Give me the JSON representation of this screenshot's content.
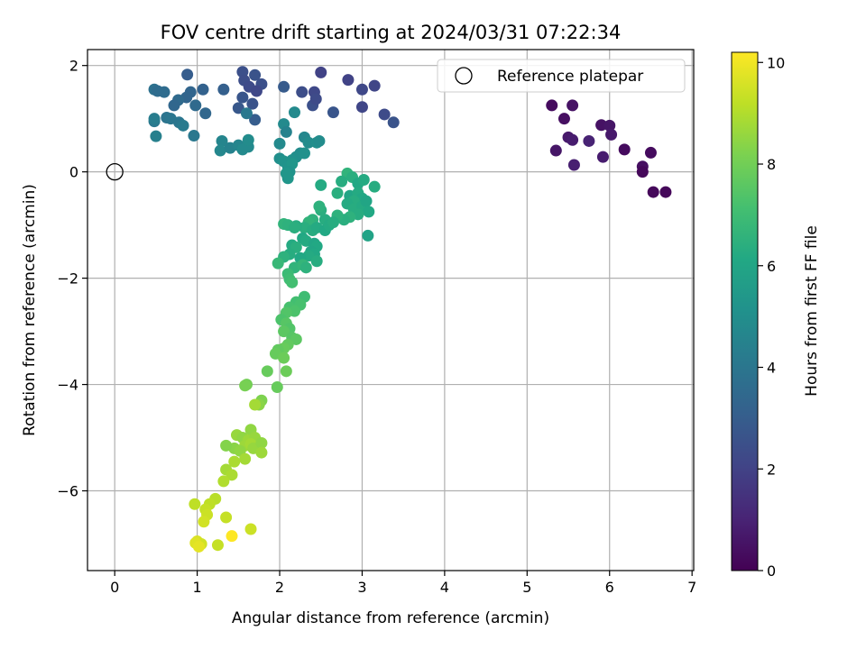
{
  "chart_data": {
    "type": "scatter",
    "title": "FOV centre drift starting at 2024/03/31 07:22:34",
    "xlabel": "Angular distance from reference (arcmin)",
    "ylabel": "Rotation from reference (arcmin)",
    "xlim": [
      -0.33,
      7.02
    ],
    "ylim": [
      -7.5,
      2.3
    ],
    "xticks": [
      0,
      1,
      2,
      3,
      4,
      5,
      6,
      7
    ],
    "yticks": [
      -6,
      -4,
      -2,
      0,
      2
    ],
    "grid": true,
    "colormap": "viridis",
    "colorbar": {
      "label": "Hours from first FF file",
      "range": [
        0,
        10.2
      ],
      "ticks": [
        0,
        2,
        4,
        6,
        8,
        10
      ]
    },
    "legend": {
      "position": "top-right",
      "entries": [
        "Reference platepar"
      ]
    },
    "reference": {
      "name": "Reference platepar",
      "x": 0,
      "y": 0
    },
    "points": [
      {
        "x": 5.3,
        "y": 1.25,
        "c": 0.3
      },
      {
        "x": 5.45,
        "y": 1.0,
        "c": 0.4
      },
      {
        "x": 5.55,
        "y": 1.25,
        "c": 0.5
      },
      {
        "x": 5.35,
        "y": 0.4,
        "c": 0.6
      },
      {
        "x": 5.5,
        "y": 0.65,
        "c": 0.7
      },
      {
        "x": 5.55,
        "y": 0.6,
        "c": 0.8
      },
      {
        "x": 5.57,
        "y": 0.13,
        "c": 0.9
      },
      {
        "x": 5.75,
        "y": 0.58,
        "c": 1.0
      },
      {
        "x": 5.9,
        "y": 0.88,
        "c": 0.5
      },
      {
        "x": 6.0,
        "y": 0.87,
        "c": 0.6
      },
      {
        "x": 6.02,
        "y": 0.7,
        "c": 0.7
      },
      {
        "x": 5.92,
        "y": 0.28,
        "c": 0.8
      },
      {
        "x": 6.18,
        "y": 0.42,
        "c": 0.3
      },
      {
        "x": 6.4,
        "y": 0.1,
        "c": 0.4
      },
      {
        "x": 6.4,
        "y": 0.0,
        "c": 0.2
      },
      {
        "x": 6.5,
        "y": 0.36,
        "c": 0.3
      },
      {
        "x": 6.53,
        "y": -0.38,
        "c": 0.2
      },
      {
        "x": 6.68,
        "y": -0.38,
        "c": 0.2
      },
      {
        "x": 1.55,
        "y": 1.88,
        "c": 2.5
      },
      {
        "x": 1.7,
        "y": 1.82,
        "c": 2.6
      },
      {
        "x": 1.57,
        "y": 1.72,
        "c": 2.4
      },
      {
        "x": 1.63,
        "y": 1.6,
        "c": 2.3
      },
      {
        "x": 1.78,
        "y": 1.65,
        "c": 2.5
      },
      {
        "x": 1.72,
        "y": 1.52,
        "c": 2.2
      },
      {
        "x": 1.55,
        "y": 1.4,
        "c": 2.7
      },
      {
        "x": 1.5,
        "y": 1.2,
        "c": 2.8
      },
      {
        "x": 1.67,
        "y": 1.28,
        "c": 2.6
      },
      {
        "x": 1.7,
        "y": 0.98,
        "c": 3.0
      },
      {
        "x": 1.6,
        "y": 1.1,
        "c": 4.1
      },
      {
        "x": 2.05,
        "y": 1.6,
        "c": 2.9
      },
      {
        "x": 2.5,
        "y": 1.87,
        "c": 2.0
      },
      {
        "x": 2.42,
        "y": 1.5,
        "c": 2.2
      },
      {
        "x": 2.27,
        "y": 1.5,
        "c": 2.4
      },
      {
        "x": 2.4,
        "y": 1.25,
        "c": 2.5
      },
      {
        "x": 2.44,
        "y": 1.37,
        "c": 2.3
      },
      {
        "x": 2.65,
        "y": 1.12,
        "c": 2.7
      },
      {
        "x": 2.83,
        "y": 1.73,
        "c": 2.0
      },
      {
        "x": 3.0,
        "y": 1.55,
        "c": 2.2
      },
      {
        "x": 3.15,
        "y": 1.62,
        "c": 2.1
      },
      {
        "x": 3.0,
        "y": 1.22,
        "c": 2.1
      },
      {
        "x": 3.27,
        "y": 1.08,
        "c": 2.3
      },
      {
        "x": 3.38,
        "y": 0.93,
        "c": 2.6
      },
      {
        "x": 0.88,
        "y": 1.83,
        "c": 3.0
      },
      {
        "x": 1.32,
        "y": 1.55,
        "c": 3.1
      },
      {
        "x": 1.07,
        "y": 1.55,
        "c": 3.2
      },
      {
        "x": 0.92,
        "y": 1.5,
        "c": 3.3
      },
      {
        "x": 0.87,
        "y": 1.4,
        "c": 3.3
      },
      {
        "x": 0.77,
        "y": 1.35,
        "c": 3.5
      },
      {
        "x": 0.72,
        "y": 1.25,
        "c": 3.4
      },
      {
        "x": 0.6,
        "y": 1.5,
        "c": 3.6
      },
      {
        "x": 0.48,
        "y": 1.55,
        "c": 3.8
      },
      {
        "x": 0.52,
        "y": 1.52,
        "c": 3.6
      },
      {
        "x": 0.98,
        "y": 1.25,
        "c": 3.5
      },
      {
        "x": 1.1,
        "y": 1.1,
        "c": 3.4
      },
      {
        "x": 0.63,
        "y": 1.02,
        "c": 3.9
      },
      {
        "x": 0.68,
        "y": 1.0,
        "c": 4.0
      },
      {
        "x": 0.78,
        "y": 0.93,
        "c": 4.0
      },
      {
        "x": 0.83,
        "y": 0.87,
        "c": 4.2
      },
      {
        "x": 0.48,
        "y": 0.95,
        "c": 4.1
      },
      {
        "x": 0.48,
        "y": 1.0,
        "c": 4.3
      },
      {
        "x": 0.5,
        "y": 0.67,
        "c": 4.4
      },
      {
        "x": 0.96,
        "y": 0.68,
        "c": 4.1
      },
      {
        "x": 1.3,
        "y": 0.58,
        "c": 4.6
      },
      {
        "x": 1.28,
        "y": 0.4,
        "c": 4.7
      },
      {
        "x": 1.4,
        "y": 0.45,
        "c": 4.5
      },
      {
        "x": 1.5,
        "y": 0.5,
        "c": 4.6
      },
      {
        "x": 1.55,
        "y": 0.42,
        "c": 4.8
      },
      {
        "x": 1.62,
        "y": 0.47,
        "c": 4.8
      },
      {
        "x": 1.62,
        "y": 0.6,
        "c": 4.9
      },
      {
        "x": 2.05,
        "y": 0.9,
        "c": 4.8
      },
      {
        "x": 2.08,
        "y": 0.75,
        "c": 4.5
      },
      {
        "x": 2.18,
        "y": 1.12,
        "c": 4.8
      },
      {
        "x": 2.3,
        "y": 0.65,
        "c": 4.7
      },
      {
        "x": 2.35,
        "y": 0.55,
        "c": 4.9
      },
      {
        "x": 2.45,
        "y": 0.55,
        "c": 5.0
      },
      {
        "x": 2.48,
        "y": 0.58,
        "c": 4.9
      },
      {
        "x": 2.0,
        "y": 0.53,
        "c": 4.8
      },
      {
        "x": 2.25,
        "y": 0.35,
        "c": 4.9
      },
      {
        "x": 2.2,
        "y": 0.28,
        "c": 5.0
      },
      {
        "x": 2.15,
        "y": 0.22,
        "c": 5.1
      },
      {
        "x": 2.0,
        "y": 0.25,
        "c": 5.0
      },
      {
        "x": 2.05,
        "y": 0.2,
        "c": 5.2
      },
      {
        "x": 2.1,
        "y": 0.1,
        "c": 5.2
      },
      {
        "x": 2.15,
        "y": 0.15,
        "c": 5.3
      },
      {
        "x": 2.12,
        "y": 0.0,
        "c": 5.2
      },
      {
        "x": 2.1,
        "y": -0.12,
        "c": 5.3
      },
      {
        "x": 2.08,
        "y": -0.03,
        "c": 5.3
      },
      {
        "x": 2.3,
        "y": 0.35,
        "c": 5.1
      },
      {
        "x": 2.5,
        "y": -0.25,
        "c": 6.2
      },
      {
        "x": 2.82,
        "y": -0.03,
        "c": 6.6
      },
      {
        "x": 2.88,
        "y": -0.1,
        "c": 6.4
      },
      {
        "x": 2.75,
        "y": -0.18,
        "c": 6.3
      },
      {
        "x": 2.95,
        "y": -0.22,
        "c": 6.1
      },
      {
        "x": 3.02,
        "y": -0.15,
        "c": 6.2
      },
      {
        "x": 3.15,
        "y": -0.28,
        "c": 6.3
      },
      {
        "x": 2.85,
        "y": -0.45,
        "c": 6.0
      },
      {
        "x": 2.95,
        "y": -0.4,
        "c": 6.2
      },
      {
        "x": 3.0,
        "y": -0.5,
        "c": 6.1
      },
      {
        "x": 2.9,
        "y": -0.55,
        "c": 6.3
      },
      {
        "x": 2.7,
        "y": -0.4,
        "c": 6.4
      },
      {
        "x": 2.82,
        "y": -0.6,
        "c": 6.2
      },
      {
        "x": 2.9,
        "y": -0.7,
        "c": 6.3
      },
      {
        "x": 3.0,
        "y": -0.65,
        "c": 6.2
      },
      {
        "x": 3.05,
        "y": -0.55,
        "c": 6.0
      },
      {
        "x": 3.08,
        "y": -0.75,
        "c": 6.1
      },
      {
        "x": 2.95,
        "y": -0.8,
        "c": 6.3
      },
      {
        "x": 2.85,
        "y": -0.85,
        "c": 6.5
      },
      {
        "x": 2.78,
        "y": -0.9,
        "c": 6.4
      },
      {
        "x": 2.7,
        "y": -0.82,
        "c": 6.5
      },
      {
        "x": 2.55,
        "y": -0.9,
        "c": 6.3
      },
      {
        "x": 2.5,
        "y": -0.72,
        "c": 6.4
      },
      {
        "x": 2.48,
        "y": -0.65,
        "c": 6.5
      },
      {
        "x": 2.4,
        "y": -0.9,
        "c": 6.5
      },
      {
        "x": 2.35,
        "y": -0.95,
        "c": 6.6
      },
      {
        "x": 2.3,
        "y": -1.05,
        "c": 6.4
      },
      {
        "x": 2.2,
        "y": -1.02,
        "c": 6.3
      },
      {
        "x": 2.05,
        "y": -0.98,
        "c": 6.6
      },
      {
        "x": 2.1,
        "y": -1.0,
        "c": 6.5
      },
      {
        "x": 2.18,
        "y": -1.05,
        "c": 6.4
      },
      {
        "x": 2.4,
        "y": -1.1,
        "c": 6.3
      },
      {
        "x": 2.45,
        "y": -1.05,
        "c": 6.2
      },
      {
        "x": 2.55,
        "y": -1.1,
        "c": 6.1
      },
      {
        "x": 2.6,
        "y": -1.0,
        "c": 6.2
      },
      {
        "x": 2.65,
        "y": -0.95,
        "c": 6.3
      },
      {
        "x": 3.07,
        "y": -1.2,
        "c": 5.9
      },
      {
        "x": 2.28,
        "y": -1.25,
        "c": 6.1
      },
      {
        "x": 2.32,
        "y": -1.3,
        "c": 6.2
      },
      {
        "x": 2.42,
        "y": -1.35,
        "c": 6.0
      },
      {
        "x": 2.45,
        "y": -1.4,
        "c": 6.1
      },
      {
        "x": 2.38,
        "y": -1.5,
        "c": 6.0
      },
      {
        "x": 2.42,
        "y": -1.55,
        "c": 6.1
      },
      {
        "x": 2.35,
        "y": -1.58,
        "c": 6.2
      },
      {
        "x": 2.25,
        "y": -1.62,
        "c": 6.1
      },
      {
        "x": 2.45,
        "y": -1.68,
        "c": 6.3
      },
      {
        "x": 2.15,
        "y": -1.38,
        "c": 6.2
      },
      {
        "x": 2.2,
        "y": -1.42,
        "c": 6.4
      },
      {
        "x": 2.12,
        "y": -1.55,
        "c": 6.3
      },
      {
        "x": 2.05,
        "y": -1.6,
        "c": 6.5
      },
      {
        "x": 2.18,
        "y": -1.8,
        "c": 6.6
      },
      {
        "x": 2.28,
        "y": -1.75,
        "c": 6.7
      },
      {
        "x": 2.32,
        "y": -1.8,
        "c": 6.5
      },
      {
        "x": 1.98,
        "y": -1.72,
        "c": 6.8
      },
      {
        "x": 2.1,
        "y": -1.92,
        "c": 6.9
      },
      {
        "x": 2.12,
        "y": -2.02,
        "c": 7.0
      },
      {
        "x": 2.15,
        "y": -2.08,
        "c": 7.1
      },
      {
        "x": 2.3,
        "y": -2.35,
        "c": 7.0
      },
      {
        "x": 2.2,
        "y": -2.45,
        "c": 7.1
      },
      {
        "x": 2.25,
        "y": -2.5,
        "c": 7.2
      },
      {
        "x": 2.12,
        "y": -2.55,
        "c": 7.2
      },
      {
        "x": 2.18,
        "y": -2.62,
        "c": 7.3
      },
      {
        "x": 2.08,
        "y": -2.65,
        "c": 7.4
      },
      {
        "x": 2.02,
        "y": -2.78,
        "c": 7.3
      },
      {
        "x": 2.08,
        "y": -2.85,
        "c": 7.5
      },
      {
        "x": 2.12,
        "y": -2.95,
        "c": 7.4
      },
      {
        "x": 2.05,
        "y": -3.0,
        "c": 7.6
      },
      {
        "x": 2.15,
        "y": -3.12,
        "c": 7.5
      },
      {
        "x": 2.2,
        "y": -3.15,
        "c": 7.6
      },
      {
        "x": 2.1,
        "y": -3.25,
        "c": 7.7
      },
      {
        "x": 2.05,
        "y": -3.32,
        "c": 7.8
      },
      {
        "x": 1.98,
        "y": -3.35,
        "c": 7.7
      },
      {
        "x": 1.95,
        "y": -3.42,
        "c": 7.8
      },
      {
        "x": 2.05,
        "y": -3.5,
        "c": 7.9
      },
      {
        "x": 2.08,
        "y": -3.75,
        "c": 7.9
      },
      {
        "x": 1.85,
        "y": -3.75,
        "c": 7.8
      },
      {
        "x": 1.97,
        "y": -4.05,
        "c": 7.8
      },
      {
        "x": 1.6,
        "y": -4.0,
        "c": 8.0
      },
      {
        "x": 1.58,
        "y": -4.02,
        "c": 8.1
      },
      {
        "x": 1.78,
        "y": -4.3,
        "c": 8.2
      },
      {
        "x": 1.75,
        "y": -4.38,
        "c": 8.4
      },
      {
        "x": 1.7,
        "y": -4.38,
        "c": 8.8
      },
      {
        "x": 1.65,
        "y": -4.85,
        "c": 8.5
      },
      {
        "x": 1.48,
        "y": -4.95,
        "c": 8.6
      },
      {
        "x": 1.55,
        "y": -5.0,
        "c": 8.5
      },
      {
        "x": 1.62,
        "y": -5.05,
        "c": 8.7
      },
      {
        "x": 1.7,
        "y": -5.0,
        "c": 8.6
      },
      {
        "x": 1.58,
        "y": -5.15,
        "c": 8.7
      },
      {
        "x": 1.65,
        "y": -5.12,
        "c": 8.8
      },
      {
        "x": 1.68,
        "y": -5.2,
        "c": 8.6
      },
      {
        "x": 1.45,
        "y": -5.2,
        "c": 8.4
      },
      {
        "x": 1.52,
        "y": -5.25,
        "c": 8.5
      },
      {
        "x": 1.35,
        "y": -5.15,
        "c": 8.3
      },
      {
        "x": 1.78,
        "y": -5.1,
        "c": 8.5
      },
      {
        "x": 1.78,
        "y": -5.28,
        "c": 8.7
      },
      {
        "x": 1.58,
        "y": -5.4,
        "c": 8.8
      },
      {
        "x": 1.45,
        "y": -5.45,
        "c": 8.9
      },
      {
        "x": 1.35,
        "y": -5.6,
        "c": 8.8
      },
      {
        "x": 1.42,
        "y": -5.7,
        "c": 8.9
      },
      {
        "x": 1.32,
        "y": -5.82,
        "c": 9.0
      },
      {
        "x": 1.22,
        "y": -6.15,
        "c": 9.1
      },
      {
        "x": 1.15,
        "y": -6.25,
        "c": 9.2
      },
      {
        "x": 1.1,
        "y": -6.35,
        "c": 9.3
      },
      {
        "x": 0.97,
        "y": -6.25,
        "c": 9.2
      },
      {
        "x": 1.12,
        "y": -6.45,
        "c": 9.4
      },
      {
        "x": 1.35,
        "y": -6.5,
        "c": 9.3
      },
      {
        "x": 1.08,
        "y": -6.58,
        "c": 9.5
      },
      {
        "x": 1.65,
        "y": -6.72,
        "c": 9.4
      },
      {
        "x": 1.42,
        "y": -6.85,
        "c": 10.2
      },
      {
        "x": 1.0,
        "y": -6.95,
        "c": 9.6
      },
      {
        "x": 1.05,
        "y": -7.0,
        "c": 9.5
      },
      {
        "x": 0.98,
        "y": -6.98,
        "c": 9.7
      },
      {
        "x": 1.25,
        "y": -7.02,
        "c": 9.3
      },
      {
        "x": 1.02,
        "y": -7.05,
        "c": 9.8
      }
    ]
  }
}
